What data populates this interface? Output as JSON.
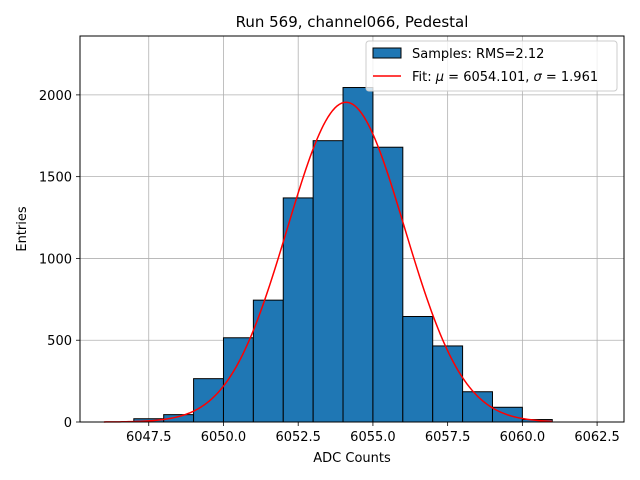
{
  "chart_data": {
    "type": "bar",
    "title": "Run 569, channel066, Pedestal",
    "xlabel": "ADC Counts",
    "ylabel": "Entries",
    "xlim": [
      6045.2,
      6063.4
    ],
    "ylim": [
      0,
      2360
    ],
    "xticks": [
      6047.5,
      6050.0,
      6052.5,
      6055.0,
      6057.5,
      6060.0,
      6062.5
    ],
    "xtick_labels": [
      "6047.5",
      "6050.0",
      "6052.5",
      "6055.0",
      "6057.5",
      "6060.0",
      "6062.5"
    ],
    "yticks": [
      0,
      500,
      1000,
      1500,
      2000
    ],
    "ytick_labels": [
      "0",
      "500",
      "1000",
      "1500",
      "2000"
    ],
    "grid": true,
    "legend_position": "top-right",
    "bin_width": 1,
    "histogram": {
      "name": "Samples: RMS=2.12",
      "color": "#1f77b4",
      "edge_color": "#000000",
      "bins": [
        {
          "x0": 6047,
          "value": 20
        },
        {
          "x0": 6048,
          "value": 45
        },
        {
          "x0": 6049,
          "value": 265
        },
        {
          "x0": 6050,
          "value": 515
        },
        {
          "x0": 6051,
          "value": 745
        },
        {
          "x0": 6052,
          "value": 1370
        },
        {
          "x0": 6053,
          "value": 1720
        },
        {
          "x0": 6054,
          "value": 2045
        },
        {
          "x0": 6055,
          "value": 1680
        },
        {
          "x0": 6056,
          "value": 645
        },
        {
          "x0": 6057,
          "value": 465
        },
        {
          "x0": 6058,
          "value": 185
        },
        {
          "x0": 6059,
          "value": 90
        },
        {
          "x0": 6060,
          "value": 15
        }
      ]
    },
    "fit": {
      "name": "Fit: μ = 6054.101, σ = 1.961",
      "name_prefix": "Fit: ",
      "mu_symbol": "μ",
      "mu_part": " = 6054.101, ",
      "sigma_symbol": "σ",
      "sigma_part": " = 1.961",
      "color": "#ff0000",
      "mu": 6054.101,
      "sigma": 1.961,
      "amplitude": 1955,
      "x_range": [
        6046,
        6061
      ]
    }
  }
}
